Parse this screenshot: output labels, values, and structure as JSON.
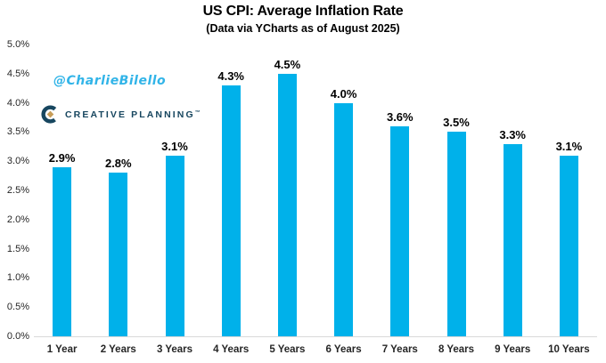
{
  "header": {
    "title": "US CPI: Average Inflation Rate",
    "subtitle": "(Data via YCharts as of August 2025)"
  },
  "watermark": {
    "handle": "@CharlieBilello",
    "color": "#31B4E8"
  },
  "logo": {
    "text": "CREATIVE PLANNING",
    "trademark": "™",
    "navy": "#17465F",
    "gold": "#C89D58"
  },
  "chart_data": {
    "type": "bar",
    "title": "US CPI: Average Inflation Rate",
    "subtitle": "(Data via YCharts as of August 2025)",
    "categories": [
      "1 Year",
      "2 Years",
      "3 Years",
      "4 Years",
      "5 Years",
      "6 Years",
      "7 Years",
      "8 Years",
      "9 Years",
      "10 Years"
    ],
    "values": [
      2.9,
      2.8,
      3.1,
      4.3,
      4.5,
      4.0,
      3.6,
      3.5,
      3.3,
      3.1
    ],
    "data_labels": [
      "2.9%",
      "2.8%",
      "3.1%",
      "4.3%",
      "4.5%",
      "4.0%",
      "3.6%",
      "3.5%",
      "3.3%",
      "3.1%"
    ],
    "xlabel": "",
    "ylabel": "",
    "ylim": [
      0,
      5
    ],
    "ytick_step": 0.5,
    "ytick_labels": [
      "0.0%",
      "0.5%",
      "1.0%",
      "1.5%",
      "2.0%",
      "2.5%",
      "3.0%",
      "3.5%",
      "4.0%",
      "4.5%",
      "5.0%"
    ],
    "bar_color": "#00B1EA",
    "axis_line_color": "#D9D9D9",
    "grid": false,
    "legend": false
  }
}
